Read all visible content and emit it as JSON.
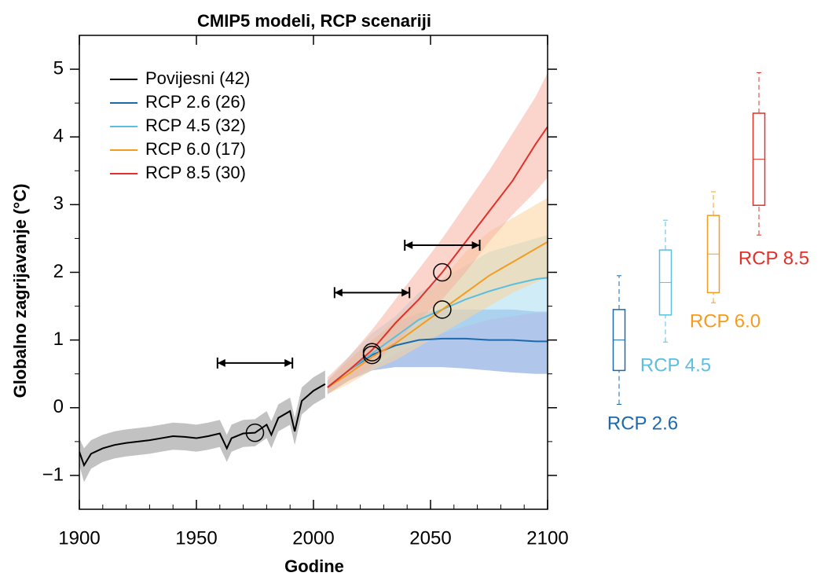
{
  "chart_data": {
    "type": "line",
    "title": "CMIP5 modeli, RCP scenariji",
    "xlabel": "Godine",
    "ylabel": "Globalno zagrijavanje (°C)",
    "xlim": [
      1900,
      2100
    ],
    "ylim": [
      -1.5,
      5.5
    ],
    "xticks": [
      1900,
      1950,
      2000,
      2050,
      2100
    ],
    "yticks": [
      {
        "value": -1,
        "label": "−1"
      },
      0,
      1,
      2,
      3,
      4,
      5
    ],
    "series": [
      {
        "name": "Povijesni (42)",
        "color": "#000000",
        "band_color": "#9a9a9a",
        "x": [
          1900,
          1902,
          1905,
          1910,
          1915,
          1920,
          1925,
          1930,
          1935,
          1940,
          1945,
          1950,
          1955,
          1960,
          1963,
          1965,
          1970,
          1975,
          1980,
          1982,
          1985,
          1990,
          1992,
          1995,
          2000,
          2005
        ],
        "values": [
          -0.65,
          -0.85,
          -0.68,
          -0.6,
          -0.55,
          -0.52,
          -0.5,
          -0.48,
          -0.45,
          -0.42,
          -0.43,
          -0.45,
          -0.42,
          -0.38,
          -0.6,
          -0.45,
          -0.38,
          -0.37,
          -0.25,
          -0.4,
          -0.15,
          -0.05,
          -0.35,
          0.1,
          0.25,
          0.35
        ],
        "lower": [
          -0.85,
          -1.1,
          -0.9,
          -0.8,
          -0.75,
          -0.72,
          -0.7,
          -0.68,
          -0.65,
          -0.62,
          -0.63,
          -0.65,
          -0.62,
          -0.58,
          -0.8,
          -0.65,
          -0.58,
          -0.57,
          -0.45,
          -0.6,
          -0.35,
          -0.25,
          -0.55,
          -0.1,
          0.05,
          0.15
        ],
        "upper": [
          -0.45,
          -0.6,
          -0.48,
          -0.4,
          -0.35,
          -0.32,
          -0.3,
          -0.28,
          -0.25,
          -0.22,
          -0.23,
          -0.25,
          -0.22,
          -0.18,
          -0.4,
          -0.25,
          -0.18,
          -0.17,
          -0.05,
          -0.2,
          0.05,
          0.15,
          -0.15,
          0.3,
          0.45,
          0.55
        ]
      },
      {
        "name": "RCP 2.6 (26)",
        "color": "#1a6aad",
        "band_color": "#6f98d8",
        "x": [
          2006,
          2015,
          2025,
          2035,
          2045,
          2055,
          2065,
          2075,
          2085,
          2095,
          2100
        ],
        "values": [
          0.3,
          0.55,
          0.78,
          0.92,
          1.0,
          1.02,
          1.02,
          1.0,
          1.0,
          0.98,
          0.98
        ],
        "lower": [
          0.2,
          0.4,
          0.55,
          0.6,
          0.6,
          0.6,
          0.58,
          0.55,
          0.52,
          0.5,
          0.5
        ],
        "upper": [
          0.4,
          0.7,
          1.0,
          1.25,
          1.4,
          1.45,
          1.45,
          1.45,
          1.45,
          1.42,
          1.42
        ]
      },
      {
        "name": "RCP 4.5 (32)",
        "color": "#5bbfe0",
        "band_color": "#a8dcf0",
        "x": [
          2006,
          2015,
          2025,
          2035,
          2045,
          2055,
          2065,
          2075,
          2085,
          2095,
          2100
        ],
        "values": [
          0.3,
          0.55,
          0.8,
          1.05,
          1.3,
          1.45,
          1.6,
          1.72,
          1.82,
          1.9,
          1.92
        ],
        "lower": [
          0.2,
          0.4,
          0.6,
          0.8,
          0.95,
          1.1,
          1.2,
          1.3,
          1.35,
          1.4,
          1.4
        ],
        "upper": [
          0.4,
          0.75,
          1.1,
          1.35,
          1.7,
          1.9,
          2.1,
          2.3,
          2.4,
          2.5,
          2.55
        ]
      },
      {
        "name": "RCP 6.0 (17)",
        "color": "#f39c1f",
        "band_color": "#fbd49a",
        "x": [
          2006,
          2015,
          2025,
          2035,
          2045,
          2055,
          2065,
          2075,
          2085,
          2095,
          2100
        ],
        "values": [
          0.3,
          0.5,
          0.75,
          0.95,
          1.2,
          1.45,
          1.7,
          1.95,
          2.15,
          2.35,
          2.45
        ],
        "lower": [
          0.2,
          0.35,
          0.55,
          0.7,
          0.9,
          1.1,
          1.3,
          1.5,
          1.7,
          1.85,
          1.95
        ],
        "upper": [
          0.4,
          0.7,
          1.0,
          1.3,
          1.6,
          1.9,
          2.3,
          2.6,
          2.8,
          3.0,
          3.1
        ]
      },
      {
        "name": "RCP 8.5 (30)",
        "color": "#e0312b",
        "band_color": "#f7b3a0",
        "x": [
          2006,
          2015,
          2025,
          2035,
          2045,
          2055,
          2065,
          2075,
          2085,
          2095,
          2100
        ],
        "values": [
          0.3,
          0.55,
          0.85,
          1.25,
          1.6,
          2.0,
          2.45,
          2.9,
          3.35,
          3.9,
          4.15
        ],
        "lower": [
          0.2,
          0.4,
          0.6,
          0.95,
          1.3,
          1.6,
          2.0,
          2.45,
          2.85,
          3.2,
          3.4
        ],
        "upper": [
          0.45,
          0.75,
          1.15,
          1.6,
          2.05,
          2.5,
          3.0,
          3.5,
          4.05,
          4.6,
          4.95
        ]
      }
    ],
    "periods": [
      {
        "start": 1959,
        "end": 1991,
        "y": 0.66
      },
      {
        "start": 2009,
        "end": 2041,
        "y": 1.7
      },
      {
        "start": 2039,
        "end": 2071,
        "y": 2.4
      }
    ],
    "markers": [
      {
        "x": 1975,
        "y": -0.37
      },
      {
        "x": 2025,
        "y": 0.82
      },
      {
        "x": 2025,
        "y": 0.78
      },
      {
        "x": 2055,
        "y": 1.45
      },
      {
        "x": 2055,
        "y": 2.0
      }
    ],
    "boxes": [
      {
        "label": "RCP 2.6",
        "color": "#1a6aad",
        "whislo": 0.05,
        "q1": 0.55,
        "med": 1.0,
        "q3": 1.45,
        "whishi": 1.95
      },
      {
        "label": "RCP 4.5",
        "color": "#5bbfe0",
        "whislo": 0.97,
        "q1": 1.37,
        "med": 1.85,
        "q3": 2.33,
        "whishi": 2.77
      },
      {
        "label": "RCP 6.0",
        "color": "#f39c1f",
        "whislo": 1.55,
        "q1": 1.7,
        "med": 2.27,
        "q3": 2.84,
        "whishi": 3.19
      },
      {
        "label": "RCP 8.5",
        "color": "#e0312b",
        "whislo": 2.55,
        "q1": 2.99,
        "med": 3.67,
        "q3": 4.35,
        "whishi": 4.95
      }
    ]
  }
}
